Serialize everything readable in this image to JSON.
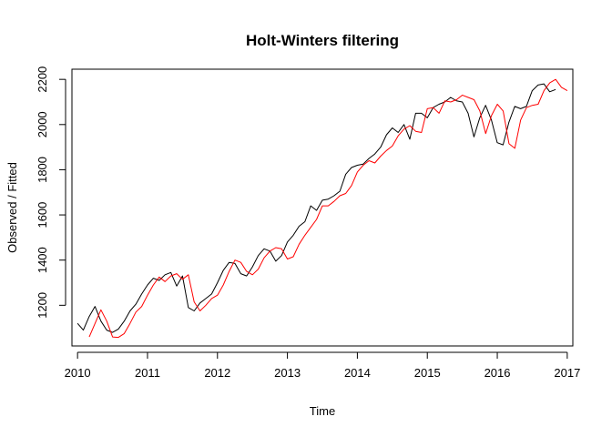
{
  "chart_data": {
    "type": "line",
    "title": "Holt-Winters filtering",
    "xlabel": "Time",
    "ylabel": "Observed / Fitted",
    "xlim": [
      2009.92,
      2017.08
    ],
    "ylim": [
      1020,
      2245
    ],
    "xticks": [
      2010,
      2011,
      2012,
      2013,
      2014,
      2015,
      2016,
      2017
    ],
    "yticks": [
      1200,
      1400,
      1600,
      1800,
      2000,
      2200
    ],
    "grid": false,
    "legend": "none",
    "series": [
      {
        "role": "observed",
        "color": "#000000",
        "x_start": 2010.0,
        "x_step": 0.083333,
        "values": [
          1120,
          1090,
          1150,
          1195,
          1130,
          1090,
          1080,
          1095,
          1130,
          1175,
          1205,
          1250,
          1290,
          1320,
          1310,
          1335,
          1345,
          1285,
          1330,
          1190,
          1175,
          1210,
          1230,
          1250,
          1300,
          1355,
          1390,
          1385,
          1340,
          1330,
          1370,
          1420,
          1450,
          1440,
          1395,
          1420,
          1480,
          1510,
          1550,
          1570,
          1640,
          1620,
          1665,
          1670,
          1685,
          1705,
          1780,
          1810,
          1820,
          1825,
          1850,
          1870,
          1900,
          1955,
          1985,
          1965,
          2000,
          1935,
          2050,
          2050,
          2030,
          2075,
          2090,
          2100,
          2120,
          2105,
          2100,
          2050,
          1945,
          2030,
          2085,
          2020,
          1920,
          1910,
          2010,
          2080,
          2070,
          2080,
          2150,
          2175,
          2180,
          2145,
          2155
        ]
      },
      {
        "role": "fitted",
        "color": "#ff0000",
        "x_start": 2010.167,
        "x_step": 0.083333,
        "values": [
          1060,
          1120,
          1180,
          1130,
          1060,
          1058,
          1075,
          1120,
          1170,
          1195,
          1245,
          1290,
          1325,
          1305,
          1330,
          1340,
          1315,
          1335,
          1215,
          1175,
          1200,
          1230,
          1245,
          1290,
          1350,
          1400,
          1390,
          1350,
          1335,
          1360,
          1410,
          1440,
          1455,
          1450,
          1405,
          1415,
          1470,
          1510,
          1545,
          1580,
          1640,
          1640,
          1660,
          1685,
          1695,
          1730,
          1790,
          1820,
          1840,
          1830,
          1860,
          1885,
          1905,
          1950,
          1980,
          1995,
          1970,
          1965,
          2070,
          2075,
          2050,
          2105,
          2100,
          2110,
          2130,
          2120,
          2110,
          2060,
          1960,
          2040,
          2090,
          2060,
          1915,
          1895,
          2020,
          2075,
          2085,
          2090,
          2150,
          2185,
          2200,
          2165,
          2150
        ]
      }
    ]
  }
}
